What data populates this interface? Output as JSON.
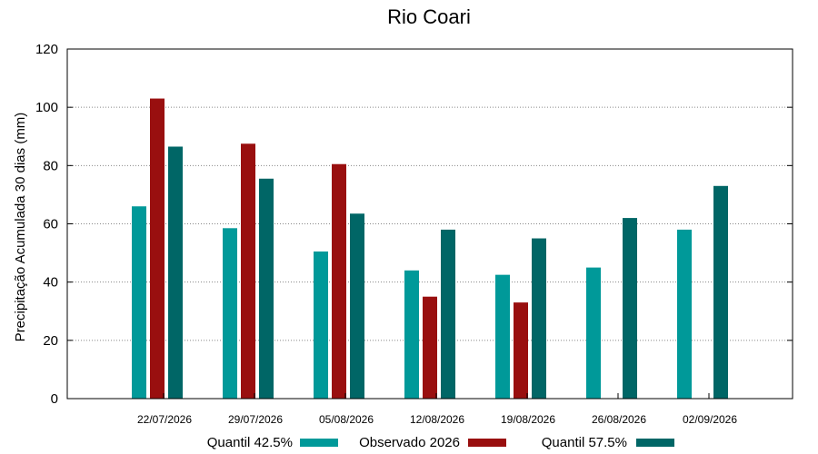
{
  "chart_data": {
    "type": "bar",
    "title": "Rio Coari",
    "ylabel": "Precipitação Acumulada 30 dias (mm)",
    "xlabel": "",
    "ylim": [
      0,
      120
    ],
    "yticks": [
      0,
      20,
      40,
      60,
      80,
      100,
      120
    ],
    "grid": "horizontal dotted",
    "legend_position": "bottom",
    "categories": [
      "22/07/2026",
      "29/07/2026",
      "05/08/2026",
      "12/08/2026",
      "19/08/2026",
      "26/08/2026",
      "02/09/2026"
    ],
    "series": [
      {
        "name": "Quantil 42.5%",
        "color": "#009999",
        "values": [
          66,
          58.5,
          50.5,
          44,
          42.5,
          45,
          58
        ]
      },
      {
        "name": "Observado 2026",
        "color": "#990f0f",
        "values": [
          103,
          87.5,
          80.5,
          35,
          33,
          null,
          null
        ]
      },
      {
        "name": "Quantil 57.5%",
        "color": "#006666",
        "values": [
          86.5,
          75.5,
          63.5,
          58,
          55,
          62,
          73
        ]
      }
    ]
  }
}
